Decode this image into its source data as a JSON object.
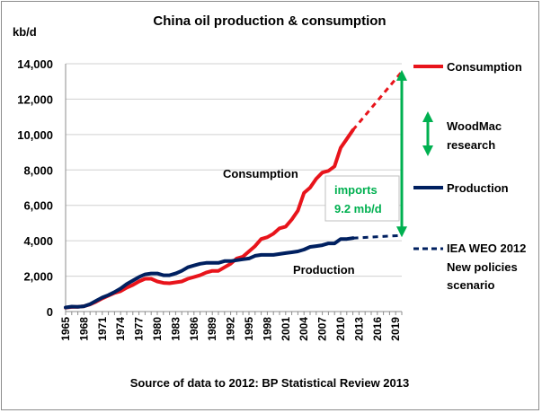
{
  "chart_data": {
    "type": "line",
    "title": "China oil production & consumption",
    "ylabel": "kb/d",
    "xlabel": "",
    "ylim": [
      0,
      14000
    ],
    "yticks": [
      0,
      2000,
      4000,
      6000,
      8000,
      10000,
      12000,
      14000
    ],
    "ytick_labels": [
      "0",
      "2,000",
      "4,000",
      "6,000",
      "8,000",
      "10,000",
      "12,000",
      "14,000"
    ],
    "xlim": [
      1965,
      2020
    ],
    "xtick_labels": [
      "1965",
      "1968",
      "1971",
      "1974",
      "1977",
      "1980",
      "1983",
      "1986",
      "1989",
      "1992",
      "1995",
      "1998",
      "2001",
      "2004",
      "2007",
      "2010",
      "2013",
      "2016",
      "2019"
    ],
    "grid": "horizontal",
    "source": "Source of data to 2012: BP Statistical Review 2013",
    "series": [
      {
        "name": "Consumption",
        "color": "#e8141b",
        "style": "solid",
        "x": [
          1965,
          1966,
          1967,
          1968,
          1969,
          1970,
          1971,
          1972,
          1973,
          1974,
          1975,
          1976,
          1977,
          1978,
          1979,
          1980,
          1981,
          1982,
          1983,
          1984,
          1985,
          1986,
          1987,
          1988,
          1989,
          1990,
          1991,
          1992,
          1993,
          1994,
          1995,
          1996,
          1997,
          1998,
          1999,
          2000,
          2001,
          2002,
          2003,
          2004,
          2005,
          2006,
          2007,
          2008,
          2009,
          2010,
          2011,
          2012
        ],
        "y": [
          220,
          260,
          270,
          300,
          400,
          560,
          740,
          900,
          1050,
          1150,
          1350,
          1500,
          1700,
          1850,
          1850,
          1700,
          1620,
          1600,
          1650,
          1700,
          1850,
          1950,
          2050,
          2200,
          2300,
          2300,
          2500,
          2700,
          3000,
          3100,
          3400,
          3700,
          4100,
          4200,
          4400,
          4700,
          4800,
          5200,
          5700,
          6700,
          7000,
          7500,
          7850,
          7950,
          8200,
          9250,
          9750,
          10250
        ]
      },
      {
        "name": "WoodMac research",
        "color": "#e8141b",
        "style": "dashed",
        "x": [
          2012,
          2020
        ],
        "y": [
          10250,
          13550
        ]
      },
      {
        "name": "Production",
        "color": "#002060",
        "style": "solid",
        "x": [
          1965,
          1966,
          1967,
          1968,
          1969,
          1970,
          1971,
          1972,
          1973,
          1974,
          1975,
          1976,
          1977,
          1978,
          1979,
          1980,
          1981,
          1982,
          1983,
          1984,
          1985,
          1986,
          1987,
          1988,
          1989,
          1990,
          1991,
          1992,
          1993,
          1994,
          1995,
          1996,
          1997,
          1998,
          1999,
          2000,
          2001,
          2002,
          2003,
          2004,
          2005,
          2006,
          2007,
          2008,
          2009,
          2010,
          2011,
          2012
        ],
        "y": [
          230,
          280,
          270,
          300,
          420,
          610,
          790,
          930,
          1100,
          1300,
          1550,
          1750,
          1950,
          2100,
          2150,
          2150,
          2050,
          2050,
          2150,
          2300,
          2500,
          2600,
          2700,
          2750,
          2750,
          2750,
          2850,
          2850,
          2900,
          2950,
          3000,
          3150,
          3200,
          3200,
          3200,
          3250,
          3300,
          3350,
          3400,
          3500,
          3650,
          3700,
          3750,
          3850,
          3850,
          4100,
          4100,
          4150
        ]
      },
      {
        "name": "IEA WEO 2012 New policies scenario",
        "color": "#002060",
        "style": "dashed",
        "x": [
          2012,
          2020
        ],
        "y": [
          4150,
          4300
        ]
      }
    ],
    "legend": [
      {
        "label": "Consumption",
        "color": "#e8141b",
        "style": "solid"
      },
      {
        "label": "WoodMac research",
        "color": "#00b050",
        "style": "arrow"
      },
      {
        "label": "Production",
        "color": "#002060",
        "style": "solid"
      },
      {
        "label": "IEA WEO 2012 New policies scenario",
        "color": "#002060",
        "style": "dashed"
      }
    ],
    "legend_position": "right",
    "annotations": {
      "consumption_label": "Consumption",
      "production_label": "Production",
      "imports_line1": "imports",
      "imports_line2": "9.2 mb/d",
      "imports_color": "#00b050",
      "imports_gap_year": 2020,
      "imports_gap_from": 4300,
      "imports_gap_to": 13550
    },
    "legend_text": {
      "consumption": "Consumption",
      "woodmac_line1": "WoodMac",
      "woodmac_line2": "research",
      "production": "Production",
      "iea_line1": "IEA WEO 2012",
      "iea_line2": "New policies",
      "iea_line3": "scenario"
    }
  }
}
